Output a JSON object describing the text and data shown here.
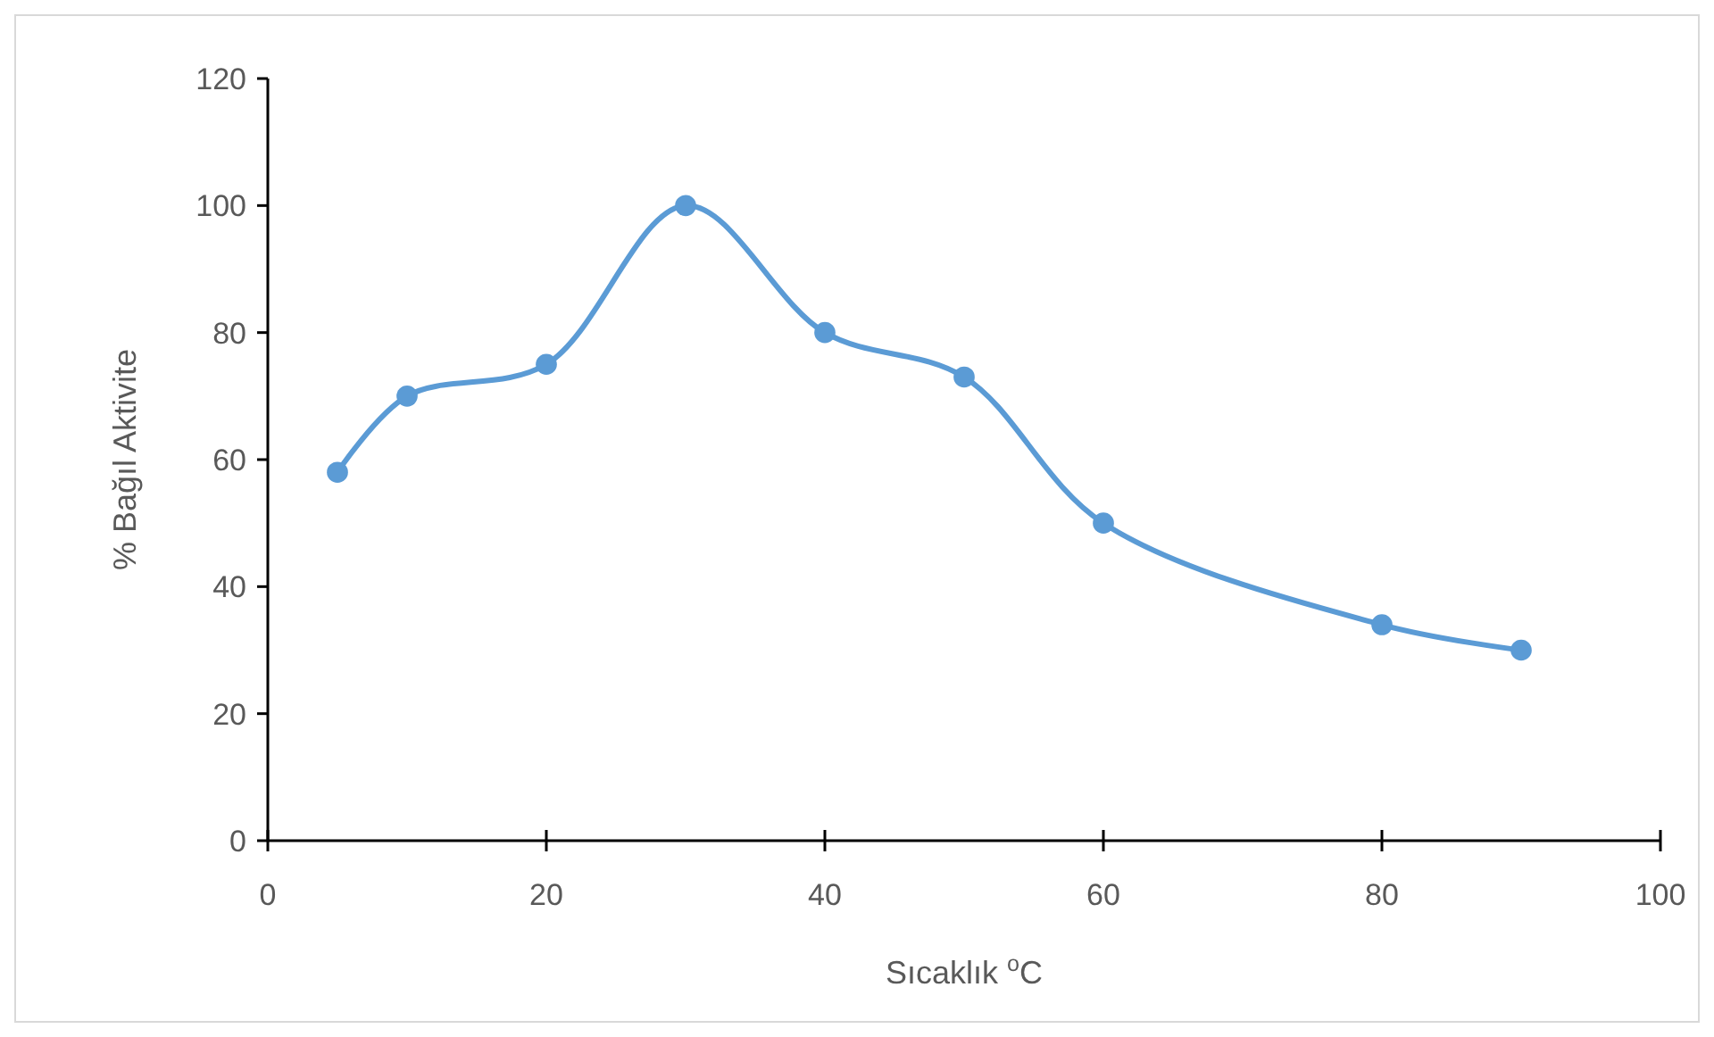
{
  "chart_data": {
    "type": "line",
    "xlabel": "Sıcaklık $^{o}$C",
    "ylabel": "% Bağıl Aktivite",
    "x": [
      5,
      10,
      20,
      30,
      40,
      50,
      60,
      80,
      90
    ],
    "series": [
      {
        "color": "#5b9bd5",
        "values": [
          58,
          70,
          75,
          100,
          80,
          73,
          50,
          34,
          30
        ]
      }
    ],
    "xlim": [
      0,
      100
    ],
    "xticks": [
      0,
      20,
      40,
      60,
      80,
      100
    ],
    "ylim": [
      0,
      120
    ],
    "yticks": [
      0,
      20,
      40,
      60,
      80,
      100,
      120
    ],
    "marker": "circle",
    "line_style": "solid"
  }
}
